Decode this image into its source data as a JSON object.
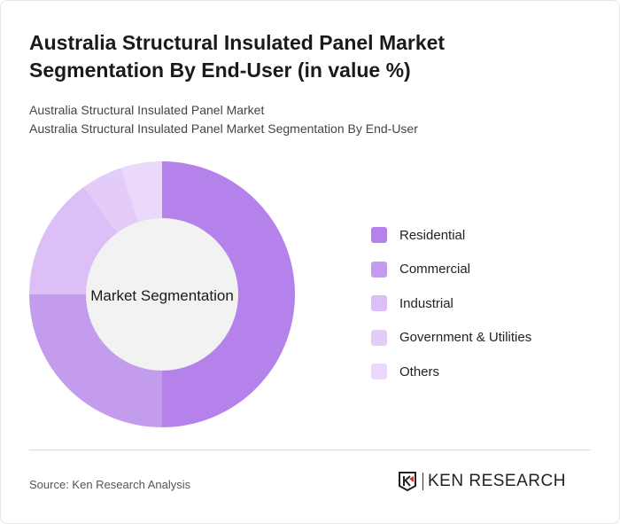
{
  "title": "Australia Structural Insulated Panel Market Segmentation By End-User (in value %)",
  "subtitle1": "Australia Structural Insulated Panel Market",
  "subtitle2": "Australia Structural Insulated Panel Market Segmentation By End-User",
  "source": "Source: Ken Research Analysis",
  "logo_text": "KEN RESEARCH",
  "chart_data": {
    "type": "pie",
    "variant": "donut",
    "center_label": "Market Segmentation",
    "legend_position": "right",
    "categories": [
      "Residential",
      "Commercial",
      "Industrial",
      "Government & Utilities",
      "Others"
    ],
    "values": [
      50,
      25,
      15,
      5,
      5
    ],
    "colors": [
      "#b482ea",
      "#c49cee",
      "#dbbff6",
      "#e3cdf8",
      "#ead9fb"
    ]
  }
}
